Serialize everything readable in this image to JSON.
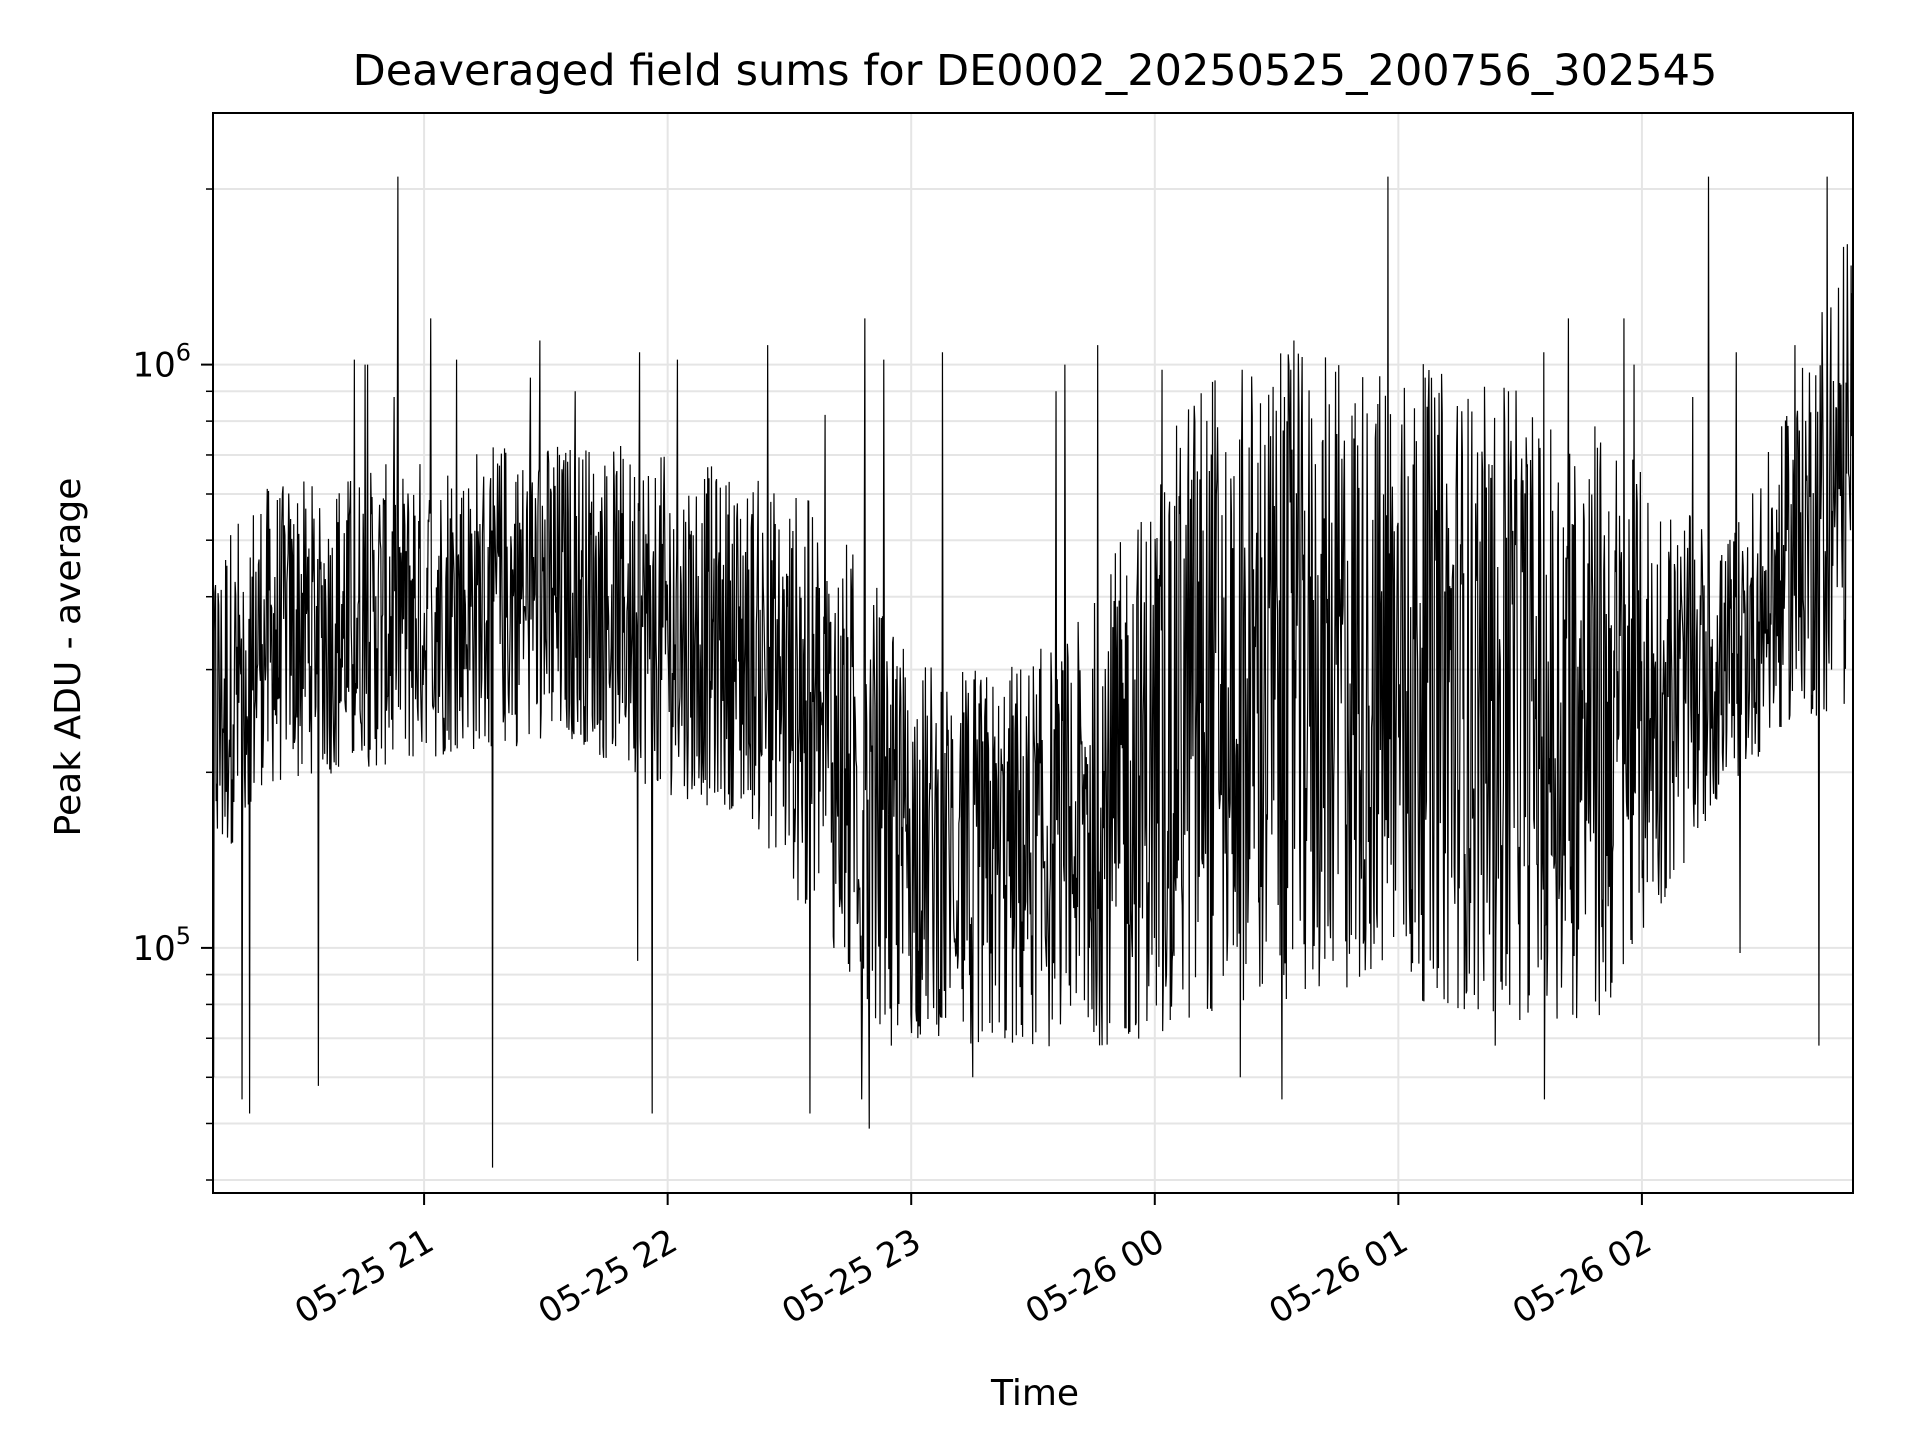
{
  "chart_data": {
    "type": "line",
    "title": "Deaveraged field sums for DE0002_20250525_200756_302545",
    "xlabel": "Time",
    "ylabel": "Peak ADU - average",
    "yscale": "log",
    "ylim": [
      38000,
      2700000
    ],
    "xlim": [
      "2025-05-25 20:08",
      "2025-05-26 02:52"
    ],
    "grid": true,
    "line_color": "#000000",
    "grid_color": "#e5e5e5",
    "x_ticks": [
      {
        "value": "2025-05-25 21:00",
        "label": "05-25 21"
      },
      {
        "value": "2025-05-25 22:00",
        "label": "05-25 22"
      },
      {
        "value": "2025-05-25 23:00",
        "label": "05-25 23"
      },
      {
        "value": "2025-05-26 00:00",
        "label": "05-26 00"
      },
      {
        "value": "2025-05-26 01:00",
        "label": "05-26 01"
      },
      {
        "value": "2025-05-26 02:00",
        "label": "05-26 02"
      }
    ],
    "y_ticks": [
      {
        "value": 100000,
        "base": "10",
        "exp": "5"
      },
      {
        "value": 1000000,
        "base": "10",
        "exp": "6"
      }
    ],
    "series": [
      {
        "envelope_x": [
          "2025-05-25 20:08",
          "2025-05-25 20:20",
          "2025-05-25 20:40",
          "2025-05-25 21:00",
          "2025-05-25 21:20",
          "2025-05-25 21:40",
          "2025-05-25 22:00",
          "2025-05-25 22:20",
          "2025-05-25 22:35",
          "2025-05-25 22:50",
          "2025-05-25 23:00",
          "2025-05-25 23:20",
          "2025-05-25 23:40",
          "2025-05-26 00:00",
          "2025-05-26 00:10",
          "2025-05-26 00:30",
          "2025-05-26 00:50",
          "2025-05-26 01:10",
          "2025-05-26 01:30",
          "2025-05-26 01:50",
          "2025-05-26 02:05",
          "2025-05-26 02:20",
          "2025-05-26 02:35",
          "2025-05-26 02:52"
        ],
        "envelope_low": [
          130000,
          190000,
          200000,
          210000,
          220000,
          220000,
          180000,
          170000,
          110000,
          75000,
          70000,
          68000,
          67000,
          70000,
          75000,
          80000,
          85000,
          80000,
          75000,
          75000,
          120000,
          180000,
          240000,
          260000
        ],
        "envelope_high": [
          500000,
          620000,
          650000,
          700000,
          750000,
          750000,
          700000,
          650000,
          600000,
          450000,
          320000,
          300000,
          350000,
          650000,
          1000000,
          1050000,
          1050000,
          1000000,
          900000,
          800000,
          600000,
          500000,
          800000,
          1900000
        ],
        "spike_values": [
          1020000,
          1030000,
          820000,
          900000,
          880000,
          1000000,
          1000000,
          1200000,
          1100000,
          1080000,
          980000,
          1050000,
          1020000,
          1000000,
          950000,
          2100000
        ],
        "dip_values": [
          68000,
          97000,
          95000,
          98000,
          60000,
          58000,
          55000,
          52000,
          60000,
          49000,
          42000,
          52000,
          55000
        ]
      }
    ]
  }
}
